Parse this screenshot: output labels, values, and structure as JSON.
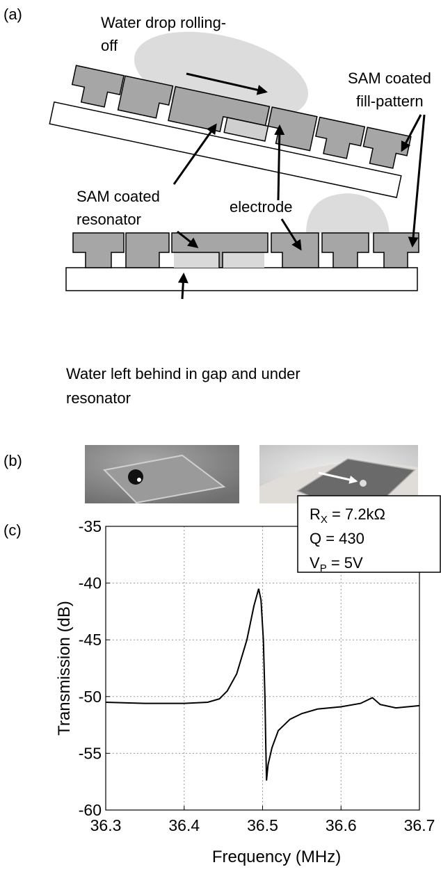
{
  "panels": {
    "a": "(a)",
    "b": "(b)",
    "c": "(c)"
  },
  "diagram": {
    "drop_label": [
      "Water drop rolling-",
      "off"
    ],
    "fill_label": [
      "SAM coated",
      "fill-pattern"
    ],
    "resonator_label": [
      "SAM coated",
      "resonator"
    ],
    "electrode_label": "electrode",
    "water_label": [
      "Water left behind in gap and under",
      "resonator"
    ]
  },
  "chart_data": {
    "type": "line",
    "xlabel": "Frequency (MHz)",
    "ylabel": "Transmission (dB)",
    "x": [
      36.3,
      36.35,
      36.4,
      36.43,
      36.445,
      36.455,
      36.467,
      36.48,
      36.489,
      36.495,
      36.498,
      36.501,
      36.503,
      36.504,
      36.505,
      36.507,
      36.512,
      36.52,
      36.535,
      36.55,
      36.57,
      36.6,
      36.625,
      36.64,
      36.65,
      36.67,
      36.7
    ],
    "series": [
      {
        "color": "#000000",
        "values": [
          -50.5,
          -50.6,
          -50.6,
          -50.5,
          -50.2,
          -49.5,
          -48,
          -45,
          -42,
          -40.5,
          -41.5,
          -45,
          -50,
          -54,
          -57.4,
          -56,
          -54.5,
          -53,
          -52,
          -51.5,
          -51.1,
          -50.9,
          -50.6,
          -50.1,
          -50.7,
          -51,
          -50.8
        ]
      }
    ],
    "xlim": [
      36.3,
      36.7
    ],
    "ylim": [
      -60,
      -35
    ],
    "xticks": [
      36.3,
      36.4,
      36.5,
      36.6,
      36.7
    ],
    "yticks": [
      -60,
      -55,
      -50,
      -45,
      -40,
      -35
    ],
    "grid": true,
    "annotations": [
      {
        "text": "R",
        "sub": "X",
        "tail": " = 7.2kΩ"
      },
      {
        "text": "Q = 430"
      },
      {
        "text": "V",
        "sub": "P",
        "tail": " = 5V"
      }
    ]
  }
}
